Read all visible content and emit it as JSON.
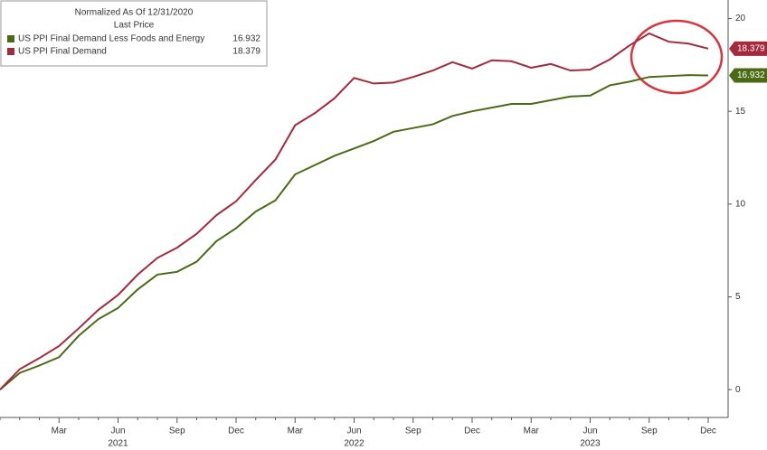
{
  "chart_data": {
    "type": "line",
    "legend_title": "Normalized As Of 12/31/2020",
    "legend_subtitle": "Last Price",
    "legend_position": "upper left",
    "grid": false,
    "categories": [
      null,
      null,
      null,
      "Mar",
      null,
      null,
      "Jun",
      null,
      null,
      "Sep",
      null,
      null,
      "Dec",
      null,
      null,
      "Mar",
      null,
      null,
      "Jun",
      null,
      null,
      "Sep",
      null,
      null,
      "Dec",
      null,
      null,
      "Mar",
      null,
      null,
      "Jun",
      null,
      null,
      "Sep",
      null,
      null,
      "Dec"
    ],
    "year_labels": [
      "2021",
      "2022",
      "2023"
    ],
    "ylim": [
      -1.5,
      21
    ],
    "yticks": [
      0,
      5,
      10,
      15,
      20
    ],
    "series": [
      {
        "name": "US PPI Final Demand Less Foods and Energy",
        "color": "#4a6a14",
        "values": [
          0,
          0.9,
          1.3,
          1.75,
          2.9,
          3.8,
          4.4,
          5.4,
          6.2,
          6.35,
          6.9,
          8.0,
          8.7,
          9.6,
          10.2,
          11.6,
          12.1,
          12.6,
          13.0,
          13.4,
          13.9,
          14.1,
          14.3,
          14.75,
          15.0,
          15.2,
          15.4,
          15.4,
          15.6,
          15.8,
          15.85,
          16.4,
          16.6,
          16.85,
          16.9,
          16.95,
          16.932
        ]
      },
      {
        "name": "US PPI Final Demand",
        "color": "#a3293f",
        "values": [
          0,
          1.1,
          1.7,
          2.35,
          3.3,
          4.3,
          5.1,
          6.2,
          7.1,
          7.65,
          8.4,
          9.4,
          10.15,
          11.3,
          12.4,
          14.25,
          14.9,
          15.7,
          16.8,
          16.5,
          16.55,
          16.85,
          17.2,
          17.65,
          17.3,
          17.75,
          17.7,
          17.35,
          17.55,
          17.2,
          17.25,
          17.8,
          18.55,
          19.2,
          18.75,
          18.65,
          18.379
        ]
      }
    ]
  }
}
